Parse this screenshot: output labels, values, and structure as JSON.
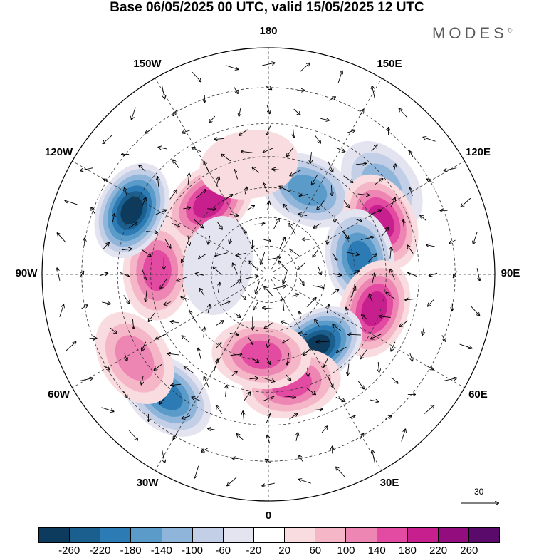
{
  "title": "Base 06/05/2025 00 UTC, valid 15/05/2025 12 UTC",
  "logo_text": "MODES",
  "logo_mark": "©",
  "longitude_labels": [
    {
      "id": "lon-180",
      "text": "180",
      "deg": 180
    },
    {
      "id": "lon-150e",
      "text": "150E",
      "deg": 150
    },
    {
      "id": "lon-120e",
      "text": "120E",
      "deg": 120
    },
    {
      "id": "lon-90e",
      "text": "90E",
      "deg": 90
    },
    {
      "id": "lon-60e",
      "text": "60E",
      "deg": 60
    },
    {
      "id": "lon-30e",
      "text": "30E",
      "deg": 30
    },
    {
      "id": "lon-0",
      "text": "0",
      "deg": 0
    },
    {
      "id": "lon-30w",
      "text": "30W",
      "deg": -30
    },
    {
      "id": "lon-60w",
      "text": "60W",
      "deg": -60
    },
    {
      "id": "lon-90w",
      "text": "90W",
      "deg": -90
    },
    {
      "id": "lon-120w",
      "text": "120W",
      "deg": -120
    },
    {
      "id": "lon-150w",
      "text": "150W",
      "deg": -150
    }
  ],
  "reference_vector_label": "30",
  "colorbar": {
    "colors": [
      "#0d3b5e",
      "#1a5f8e",
      "#2d7bb5",
      "#5a9bc9",
      "#8fb5da",
      "#c3cfe6",
      "#e4e4f1",
      "#ffffff",
      "#f9dcdf",
      "#f5b7c7",
      "#ee86b4",
      "#e34aa1",
      "#c81f8e",
      "#930d7e",
      "#5a0a6a"
    ],
    "ticks": [
      "-260",
      "-220",
      "-180",
      "-140",
      "-100",
      "-60",
      "-20",
      "20",
      "60",
      "100",
      "140",
      "180",
      "220",
      "260"
    ]
  },
  "anomalies": [
    {
      "lon": -140,
      "lat": 58,
      "value": 200
    },
    {
      "lon": 155,
      "lat": 58,
      "value": -160
    },
    {
      "lon": 128,
      "lat": 42,
      "value": -120
    },
    {
      "lon": 115,
      "lat": 48,
      "value": 200
    },
    {
      "lon": 100,
      "lat": 58,
      "value": -180
    },
    {
      "lon": 72,
      "lat": 52,
      "value": 200
    },
    {
      "lon": 34,
      "lat": 60,
      "value": -260
    },
    {
      "lon": 12,
      "lat": 52,
      "value": 160
    },
    {
      "lon": -5,
      "lat": 62,
      "value": 170
    },
    {
      "lon": -40,
      "lat": 38,
      "value": -200
    },
    {
      "lon": -58,
      "lat": 38,
      "value": 110
    },
    {
      "lon": -92,
      "lat": 52,
      "value": 140
    },
    {
      "lon": -115,
      "lat": 40,
      "value": -260
    },
    {
      "lon": -170,
      "lat": 52,
      "value": 40
    },
    {
      "lon": -100,
      "lat": 72,
      "value": -40
    }
  ]
}
